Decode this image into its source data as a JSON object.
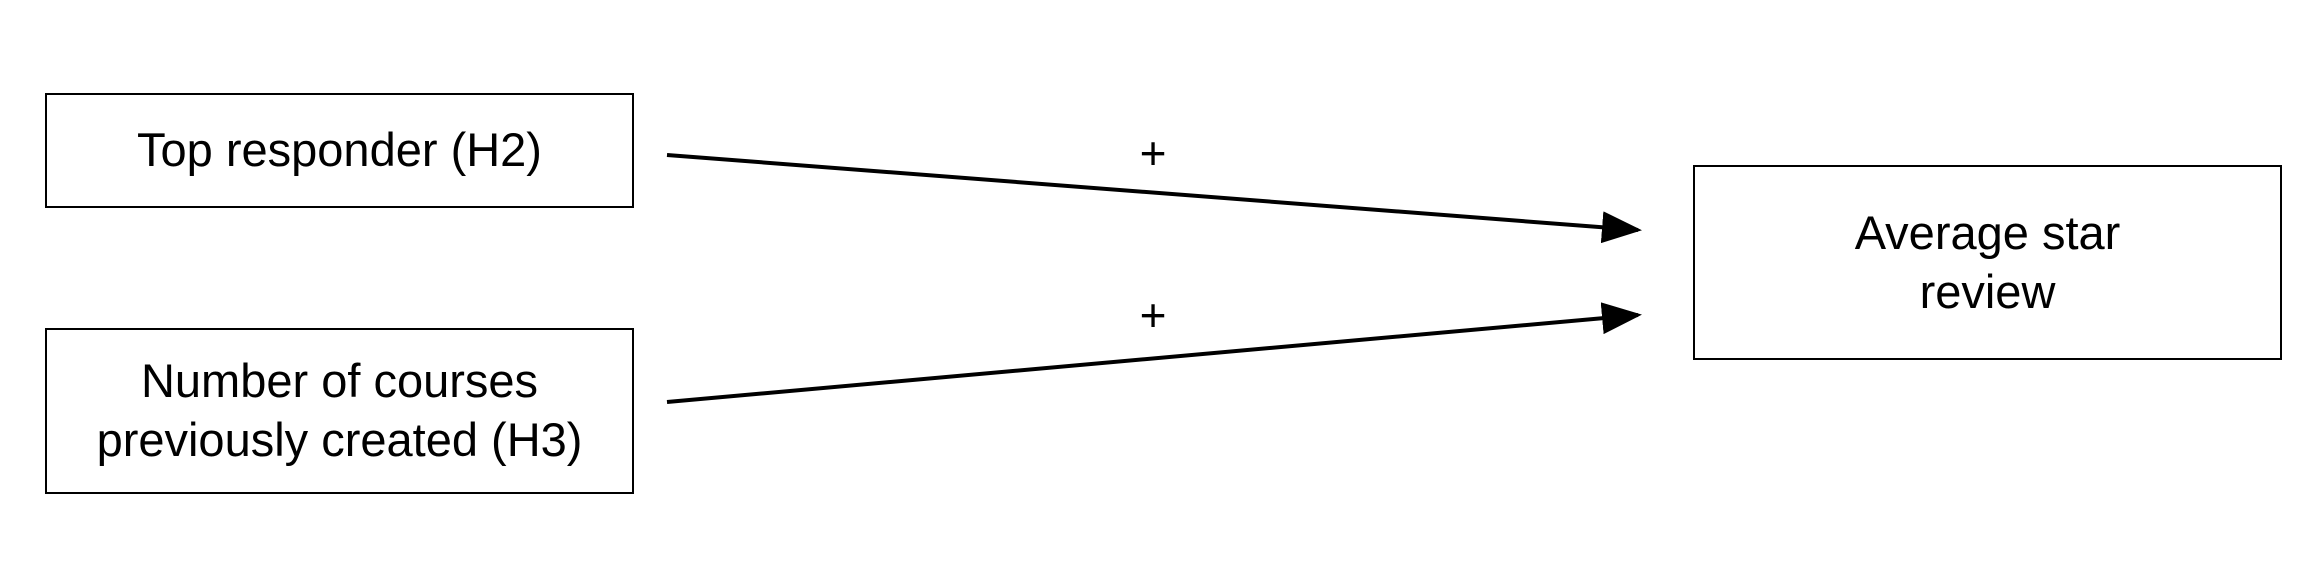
{
  "diagram": {
    "nodes": [
      {
        "id": "top-responder",
        "lines": [
          "Top responder (H2)"
        ]
      },
      {
        "id": "courses-created",
        "lines": [
          "Number of courses",
          "previously created (H3)"
        ]
      },
      {
        "id": "average-star-review",
        "lines": [
          "Average star",
          "review"
        ]
      }
    ],
    "edges": [
      {
        "from": "top-responder",
        "to": "average-star-review",
        "label": "+"
      },
      {
        "from": "courses-created",
        "to": "average-star-review",
        "label": "+"
      }
    ],
    "colors": {
      "line": "#000000",
      "background": "#ffffff"
    }
  }
}
